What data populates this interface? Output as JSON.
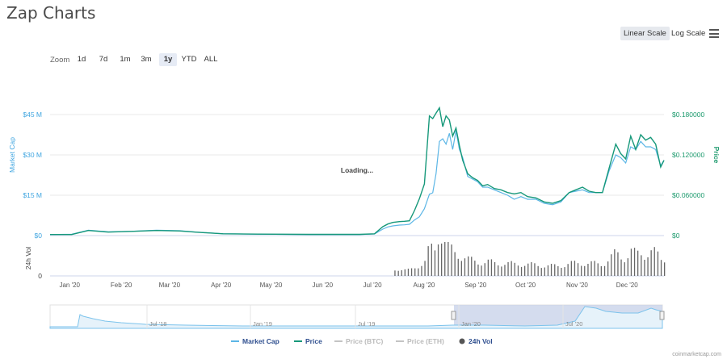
{
  "title": "Zap Charts",
  "scale_buttons": {
    "linear": "Linear Scale",
    "log": "Log Scale"
  },
  "zoom": {
    "label": "Zoom",
    "options": [
      "1d",
      "7d",
      "1m",
      "3m",
      "1y",
      "YTD",
      "ALL"
    ],
    "active": "1y"
  },
  "loading_text": "Loading...",
  "credit": "coinmarketcap.com",
  "colors": {
    "market_cap": "#5cb6e6",
    "price": "#16987a",
    "volume": "#666666",
    "btc": "#c4c4c4",
    "eth": "#c4c4c4"
  },
  "chart_data": {
    "type": "line",
    "x_ticks": [
      "Jan '20",
      "Feb '20",
      "Mar '20",
      "Apr '20",
      "May '20",
      "Jun '20",
      "Jul '20",
      "Aug '20",
      "Sep '20",
      "Oct '20",
      "Nov '20",
      "Dec '20"
    ],
    "left_axis": {
      "label": "Market Cap",
      "ticks": [
        "$0",
        "$15 M",
        "$30 M",
        "$45 M"
      ],
      "range": [
        0,
        45000000
      ]
    },
    "right_axis": {
      "label": "Price",
      "ticks": [
        "$0",
        "$0.060000",
        "$0.120000",
        "$0.180000"
      ],
      "range": [
        0,
        0.18
      ]
    },
    "volume_axis": {
      "label": "24h Vol",
      "ticks": [
        "0",
        "$0"
      ]
    },
    "legend": [
      "Market Cap",
      "Price",
      "Price (BTC)",
      "Price (ETH)",
      "24h Vol"
    ],
    "legend_position": "bottom",
    "grid": true,
    "dates": [
      "2019-12-28",
      "2020-01-10",
      "2020-01-20",
      "2020-02-01",
      "2020-02-15",
      "2020-03-01",
      "2020-03-15",
      "2020-03-25",
      "2020-04-10",
      "2020-05-01",
      "2020-06-01",
      "2020-07-01",
      "2020-07-10",
      "2020-07-15",
      "2020-07-18",
      "2020-07-21",
      "2020-07-25",
      "2020-07-28",
      "2020-07-31",
      "2020-08-03",
      "2020-08-06",
      "2020-08-09",
      "2020-08-12",
      "2020-08-14",
      "2020-08-16",
      "2020-08-18",
      "2020-08-20",
      "2020-08-22",
      "2020-08-24",
      "2020-08-26",
      "2020-08-28",
      "2020-08-30",
      "2020-09-01",
      "2020-09-04",
      "2020-09-07",
      "2020-09-10",
      "2020-09-13",
      "2020-09-16",
      "2020-09-20",
      "2020-09-24",
      "2020-09-28",
      "2020-10-02",
      "2020-10-06",
      "2020-10-10",
      "2020-10-15",
      "2020-10-20",
      "2020-10-25",
      "2020-10-30",
      "2020-11-04",
      "2020-11-08",
      "2020-11-12",
      "2020-11-16",
      "2020-11-20",
      "2020-11-24",
      "2020-11-28",
      "2020-12-02",
      "2020-12-05",
      "2020-12-08",
      "2020-12-11",
      "2020-12-14",
      "2020-12-17",
      "2020-12-20",
      "2020-12-23",
      "2020-12-26",
      "2020-12-29",
      "2020-12-31"
    ],
    "series": [
      {
        "name": "Market Cap",
        "axis": "left",
        "values": [
          0.4,
          0.5,
          2.0,
          1.4,
          1.6,
          2.0,
          1.8,
          1.3,
          0.7,
          0.5,
          0.4,
          0.4,
          0.6,
          2.4,
          3.2,
          3.6,
          3.9,
          4.0,
          4.2,
          5.8,
          7.0,
          10.0,
          15.4,
          15.9,
          23.0,
          35.0,
          36.0,
          34.0,
          38.0,
          32.0,
          39.0,
          32.0,
          29.0,
          22.0,
          21.0,
          20.0,
          18.0,
          18.0,
          17.0,
          16.0,
          15.0,
          13.5,
          14.5,
          13.5,
          13.5,
          12.0,
          11.5,
          12.5,
          16.0,
          16.5,
          17.0,
          16.0,
          16.0,
          16.0,
          24.0,
          30.0,
          29.0,
          27.0,
          33.0,
          32.0,
          35.0,
          33.0,
          33.0,
          32.0,
          26.0,
          28.0
        ]
      },
      {
        "name": "Price",
        "axis": "right",
        "values": [
          0.0016,
          0.0016,
          0.0076,
          0.0052,
          0.0062,
          0.0076,
          0.0068,
          0.005,
          0.0026,
          0.0022,
          0.0018,
          0.0018,
          0.0026,
          0.0132,
          0.0172,
          0.0196,
          0.0208,
          0.0212,
          0.022,
          0.0372,
          0.0548,
          0.0768,
          0.178,
          0.174,
          0.182,
          0.19,
          0.162,
          0.178,
          0.172,
          0.148,
          0.16,
          0.134,
          0.112,
          0.092,
          0.086,
          0.082,
          0.074,
          0.076,
          0.07,
          0.068,
          0.064,
          0.062,
          0.064,
          0.058,
          0.056,
          0.05,
          0.048,
          0.052,
          0.064,
          0.068,
          0.072,
          0.066,
          0.064,
          0.064,
          0.1,
          0.136,
          0.122,
          0.114,
          0.148,
          0.128,
          0.15,
          0.142,
          0.146,
          0.136,
          0.102,
          0.112
        ]
      }
    ]
  },
  "navigator": {
    "ticks": [
      "Jul '18",
      "Jan '19",
      "Jul '19",
      "Jan '20",
      "Jul '20"
    ]
  }
}
